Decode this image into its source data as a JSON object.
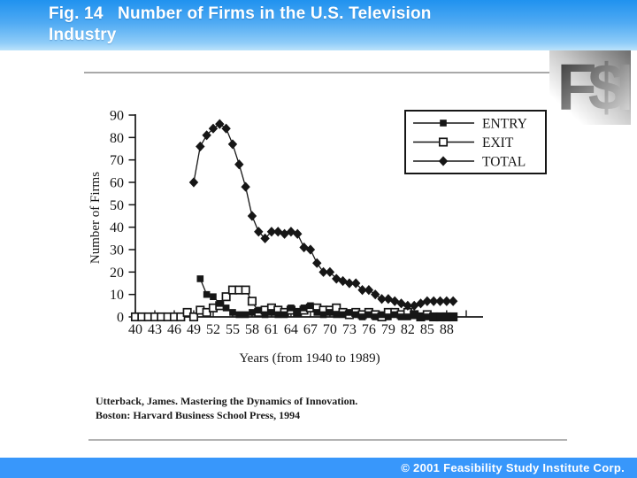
{
  "header": {
    "title_line1": "Fig. 14   Number of Firms in the U.S. Television",
    "title_line2": "Industry"
  },
  "logo": {
    "text": "F$I"
  },
  "citation": {
    "line1": "Utterback, James.  Mastering the Dynamics of Innovation.",
    "line2": "Boston: Harvard Business School Press, 1994"
  },
  "footer": {
    "copyright": "© 2001 Feasibility Study Institute Corp."
  },
  "colors": {
    "header_blue_top": "#2092ef",
    "header_blue_bottom": "#bce3fb",
    "footer_blue": "#3897fb",
    "rule_gray": "#a9a9a9",
    "ink": "#161616"
  },
  "chart_data": {
    "type": "line",
    "title": "",
    "xlabel": "Years (from 1940 to 1989)",
    "ylabel": "Number of Firms",
    "ylim": [
      0,
      90
    ],
    "grid": false,
    "legend_position": "top-right",
    "y_ticks": [
      0,
      10,
      20,
      30,
      40,
      50,
      60,
      70,
      80,
      90
    ],
    "x_tick_labels": [
      "40",
      "43",
      "46",
      "49",
      "52",
      "55",
      "58",
      "61",
      "64",
      "67",
      "70",
      "73",
      "76",
      "79",
      "82",
      "85",
      "88"
    ],
    "x": [
      1940,
      1941,
      1942,
      1943,
      1944,
      1945,
      1946,
      1947,
      1948,
      1949,
      1950,
      1951,
      1952,
      1953,
      1954,
      1955,
      1956,
      1957,
      1958,
      1959,
      1960,
      1961,
      1962,
      1963,
      1964,
      1965,
      1966,
      1967,
      1968,
      1969,
      1970,
      1971,
      1972,
      1973,
      1974,
      1975,
      1976,
      1977,
      1978,
      1979,
      1980,
      1981,
      1982,
      1983,
      1984,
      1985,
      1986,
      1987,
      1988,
      1989
    ],
    "draw_order": [
      "EXIT",
      "ENTRY",
      "TOTAL"
    ],
    "series": [
      {
        "name": "ENTRY",
        "marker": "filled-square",
        "values": [
          null,
          null,
          null,
          null,
          null,
          null,
          null,
          null,
          null,
          null,
          17,
          10,
          9,
          6,
          4,
          2,
          1,
          1,
          2,
          3,
          1,
          2,
          1,
          1,
          4,
          2,
          4,
          5,
          2,
          1,
          2,
          1,
          1,
          2,
          1,
          0,
          1,
          0,
          1,
          0,
          1,
          0,
          0,
          1,
          0,
          0,
          0,
          0,
          0,
          0
        ]
      },
      {
        "name": "EXIT",
        "marker": "open-square",
        "values": [
          0,
          0,
          0,
          0,
          0,
          0,
          0,
          0,
          2,
          0,
          3,
          2,
          4,
          5,
          9,
          12,
          12,
          12,
          7,
          2,
          3,
          4,
          3,
          2,
          3,
          2,
          3,
          4,
          4,
          3,
          3,
          4,
          2,
          1,
          2,
          1,
          2,
          1,
          0,
          2,
          2,
          1,
          2,
          1,
          0,
          1,
          0,
          0,
          0,
          0
        ]
      },
      {
        "name": "TOTAL",
        "marker": "filled-diamond",
        "values": [
          null,
          null,
          null,
          null,
          null,
          null,
          null,
          null,
          null,
          60,
          76,
          81,
          84,
          86,
          84,
          77,
          68,
          58,
          45,
          38,
          35,
          38,
          38,
          37,
          38,
          37,
          31,
          30,
          24,
          20,
          20,
          17,
          16,
          15,
          15,
          12,
          12,
          10,
          8,
          8,
          7,
          6,
          5,
          5,
          6,
          7,
          7,
          7,
          7,
          7
        ]
      }
    ]
  }
}
